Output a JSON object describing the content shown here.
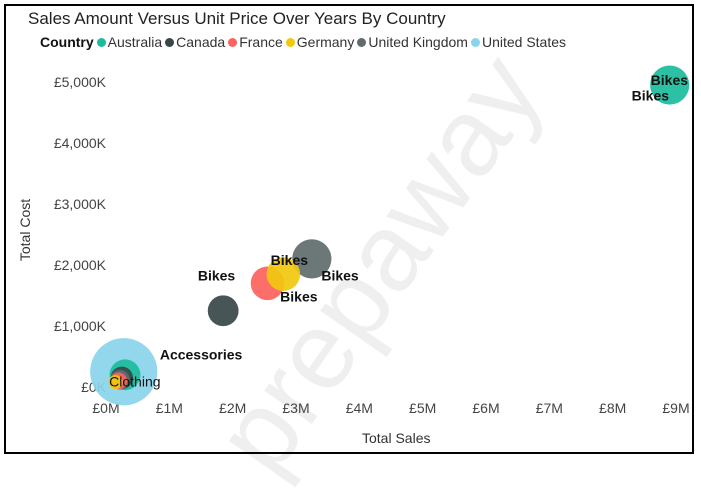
{
  "chart_data": {
    "type": "scatter",
    "title": "Sales Amount Versus Unit Price Over Years By Country",
    "xlabel": "Total Sales",
    "ylabel": "Total Cost",
    "legend_title": "Country",
    "legend_position": "top-left",
    "x_unit": "millions",
    "y_unit": "thousands",
    "xlim": [
      0,
      9
    ],
    "ylim": [
      0,
      5000
    ],
    "x_ticks": [
      0,
      1,
      2,
      3,
      4,
      5,
      6,
      7,
      8,
      9
    ],
    "x_tick_labels": [
      "£0M",
      "£1M",
      "£2M",
      "£3M",
      "£4M",
      "£5M",
      "£6M",
      "£7M",
      "£8M",
      "£9M"
    ],
    "y_ticks": [
      0,
      1000,
      2000,
      3000,
      4000,
      5000
    ],
    "y_tick_labels": [
      "£0K",
      "£1,000K",
      "£2,000K",
      "£3,000K",
      "£4,000K",
      "£5,000K"
    ],
    "series": [
      {
        "name": "Australia",
        "color": "#1ABC9C",
        "points": [
          {
            "x": 8.9,
            "y": 4950,
            "size": 28
          },
          {
            "x": 0.3,
            "y": 200,
            "size": 22
          }
        ]
      },
      {
        "name": "Canada",
        "color": "#374649",
        "points": [
          {
            "x": 1.85,
            "y": 1250,
            "size": 22
          },
          {
            "x": 0.25,
            "y": 150,
            "size": 16
          }
        ]
      },
      {
        "name": "France",
        "color": "#FD625E",
        "points": [
          {
            "x": 2.55,
            "y": 1700,
            "size": 24
          },
          {
            "x": 0.2,
            "y": 100,
            "size": 12
          }
        ]
      },
      {
        "name": "Germany",
        "color": "#F2C80F",
        "points": [
          {
            "x": 2.8,
            "y": 1850,
            "size": 24
          },
          {
            "x": 0.15,
            "y": 80,
            "size": 10
          }
        ]
      },
      {
        "name": "United Kingdom",
        "color": "#5F6B6D",
        "points": [
          {
            "x": 3.25,
            "y": 2100,
            "size": 28
          },
          {
            "x": 0.22,
            "y": 120,
            "size": 14
          }
        ]
      },
      {
        "name": "United States",
        "color": "#8AD4EB",
        "points": [
          {
            "x": 0.28,
            "y": 250,
            "size": 48
          }
        ]
      }
    ],
    "annotations": [
      {
        "text": "Bikes",
        "x": 8.6,
        "y": 4950
      },
      {
        "text": "Bikes",
        "x": 8.3,
        "y": 4700
      },
      {
        "text": "Bikes",
        "x": 2.6,
        "y": 2000
      },
      {
        "text": "Bikes",
        "x": 1.45,
        "y": 1750
      },
      {
        "text": "Bikes",
        "x": 3.4,
        "y": 1750
      },
      {
        "text": "Bikes",
        "x": 2.75,
        "y": 1400
      },
      {
        "text": "Accessories",
        "x": 0.85,
        "y": 450
      },
      {
        "text": "Clothing",
        "x": 0.05,
        "y": 10
      }
    ]
  },
  "watermark": "prepaway"
}
